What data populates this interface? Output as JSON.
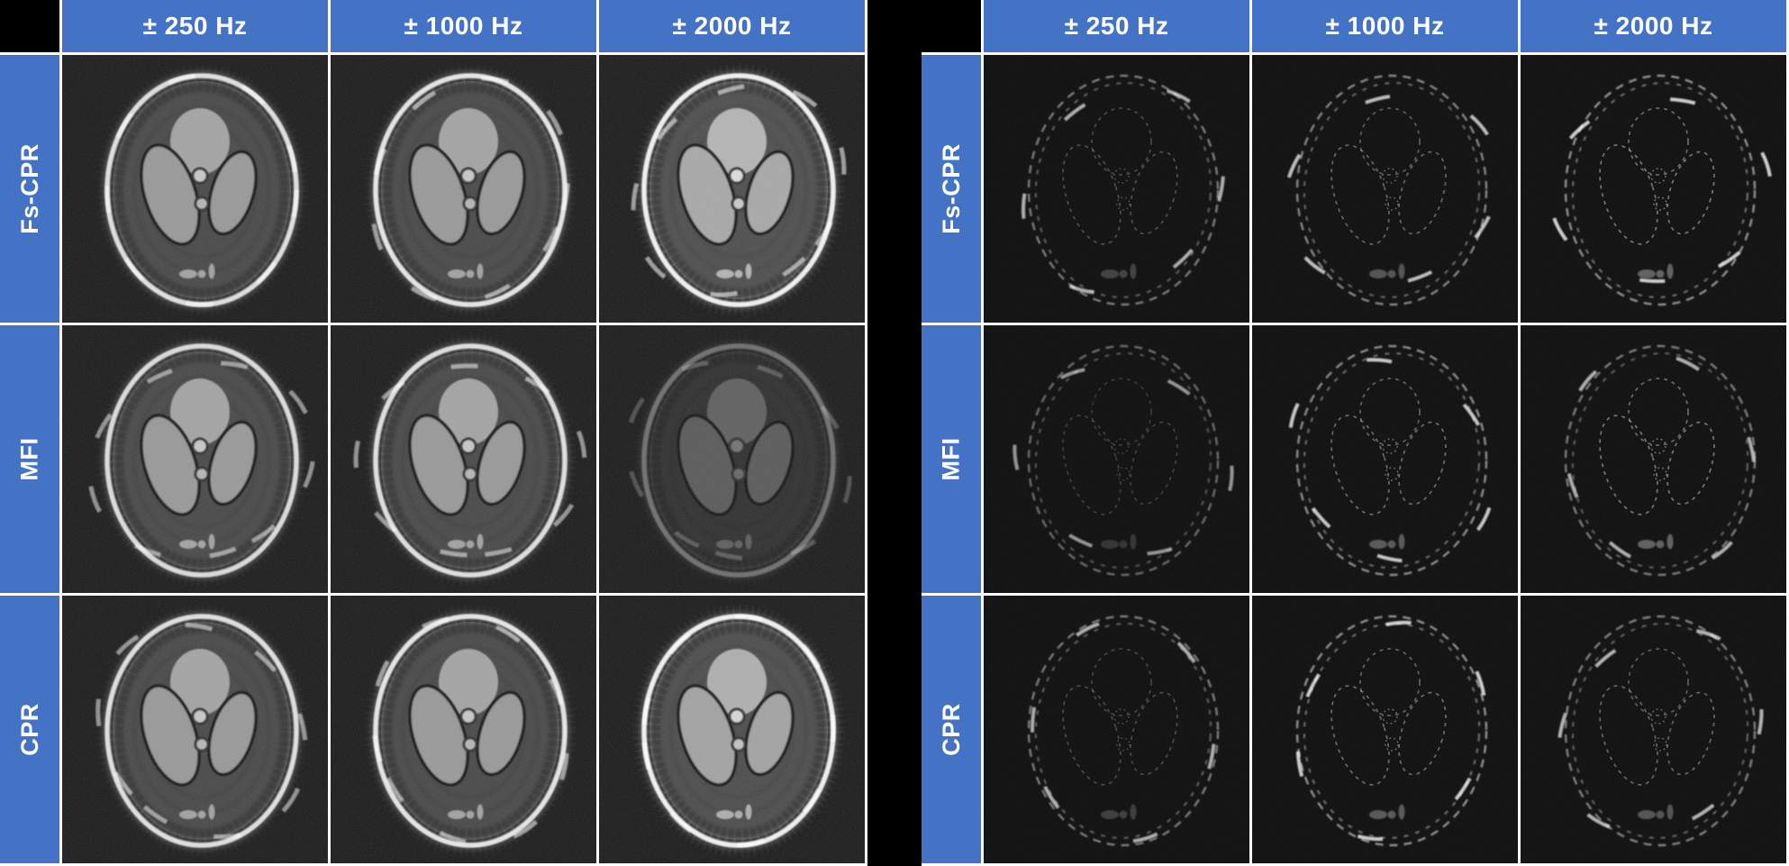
{
  "figure": {
    "background": "#000000",
    "grid_line_color": "#ffffff",
    "header_bg": "#4472C4",
    "header_text_color": "#ffffff",
    "image_bg": "#060606"
  },
  "panels": [
    {
      "role": "reconstructed-phantom-images",
      "column_headers": [
        "± 250 Hz",
        "± 1000 Hz",
        "± 2000 Hz"
      ],
      "row_headers": [
        "Fs-CPR",
        "MFI",
        "CPR"
      ],
      "cell_kind": "phantom-reconstruction",
      "cells": [
        [
          {
            "gain": 1.0,
            "rim": 0.92,
            "streaks": 0.45
          },
          {
            "gain": 1.0,
            "rim": 0.95,
            "streaks": 0.55
          },
          {
            "gain": 1.12,
            "rim": 1.0,
            "streaks": 0.85
          }
        ],
        [
          {
            "gain": 1.0,
            "rim": 0.9,
            "streaks": 0.45
          },
          {
            "gain": 1.0,
            "rim": 0.92,
            "streaks": 0.5
          },
          {
            "gain": 0.52,
            "rim": 0.4,
            "streaks": 0.25
          }
        ],
        [
          {
            "gain": 1.0,
            "rim": 0.92,
            "streaks": 0.45
          },
          {
            "gain": 1.0,
            "rim": 0.95,
            "streaks": 0.55
          },
          {
            "gain": 1.08,
            "rim": 1.0,
            "streaks": 0.85
          }
        ]
      ]
    },
    {
      "role": "error-difference-maps",
      "column_headers": [
        "± 250 Hz",
        "± 1000 Hz",
        "± 2000 Hz"
      ],
      "row_headers": [
        "Fs-CPR",
        "MFI",
        "CPR"
      ],
      "cell_kind": "difference-map",
      "cells": [
        [
          {
            "ring": 0.5,
            "inner": 0.3
          },
          {
            "ring": 0.55,
            "inner": 0.42
          },
          {
            "ring": 0.6,
            "inner": 0.5
          }
        ],
        [
          {
            "ring": 0.42,
            "inner": 0.22
          },
          {
            "ring": 0.58,
            "inner": 0.45
          },
          {
            "ring": 0.5,
            "inner": 0.5
          }
        ],
        [
          {
            "ring": 0.5,
            "inner": 0.28
          },
          {
            "ring": 0.6,
            "inner": 0.45
          },
          {
            "ring": 0.52,
            "inner": 0.42
          }
        ]
      ]
    }
  ]
}
